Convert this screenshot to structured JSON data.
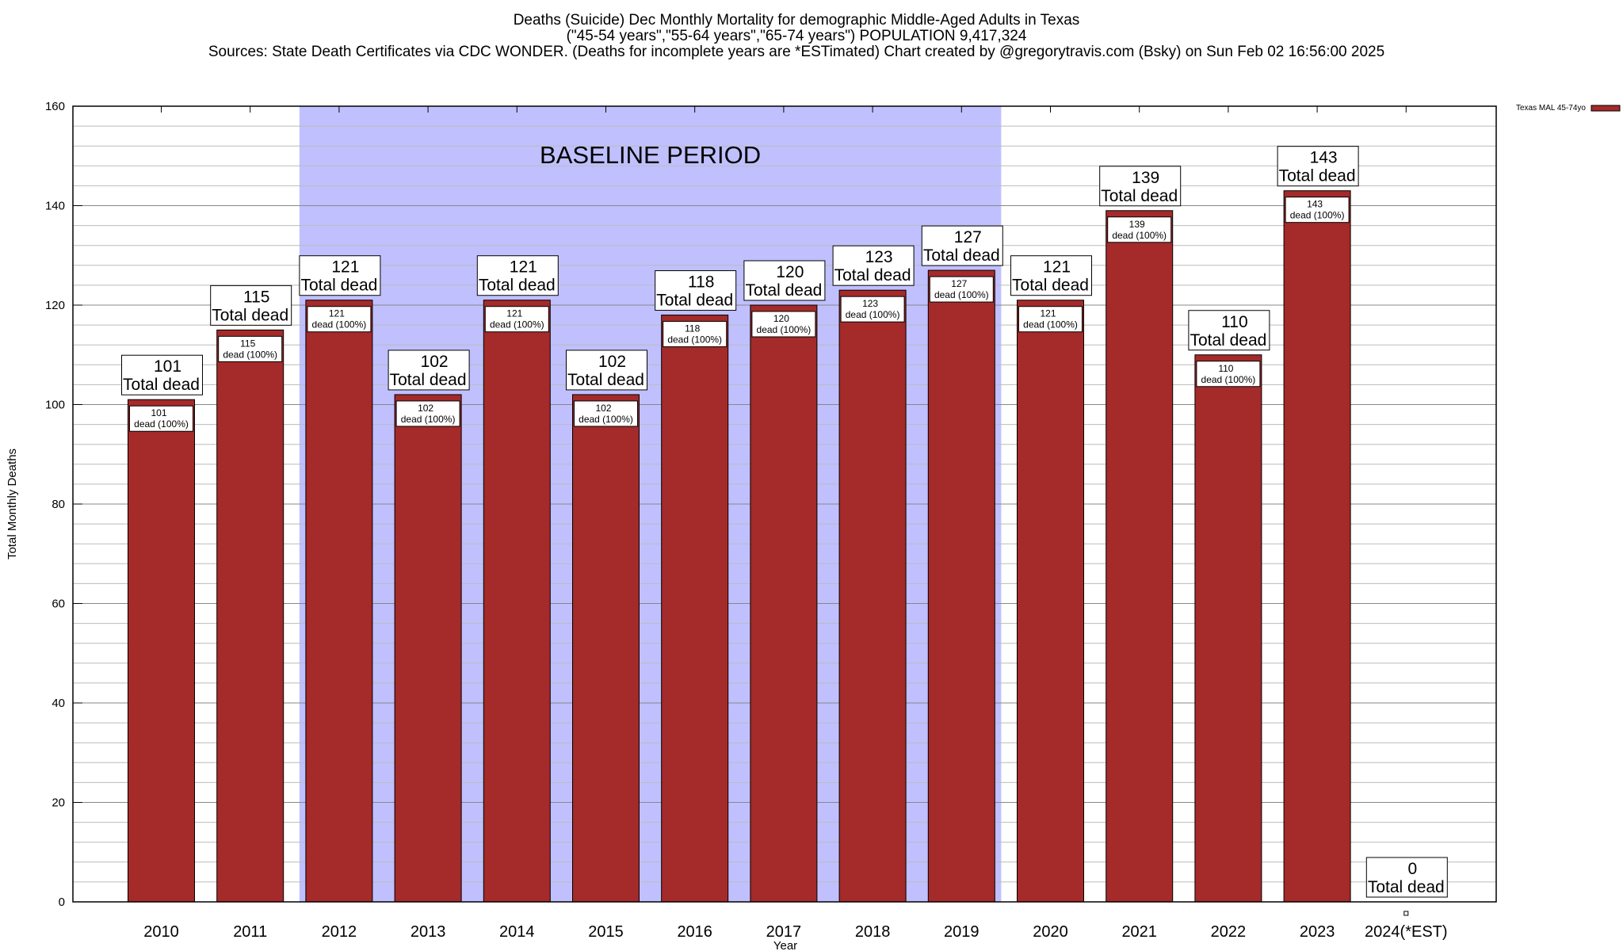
{
  "chart_data": {
    "type": "bar",
    "title_lines": [
      "Deaths (Suicide) Dec Monthly Mortality for demographic Middle-Aged Adults in Texas",
      "(\"45-54 years\",\"55-64 years\",\"65-74 years\") POPULATION 9,417,324",
      "Sources: State Death Certificates via CDC WONDER. (Deaths for incomplete years are *ESTimated)              Chart created by @gregorytravis.com (Bsky) on Sun Feb 02 16:56:00 2025"
    ],
    "xlabel": "Year",
    "ylabel": "Total Monthly Deaths",
    "ylim": [
      0,
      160
    ],
    "yticks": [
      0,
      20,
      40,
      60,
      80,
      100,
      120,
      140,
      160
    ],
    "grid": true,
    "legend": {
      "label": "Texas MAL 45-74yo",
      "placement": "top-right",
      "color": "#a52a2a"
    },
    "bar_color": "#a52a2a",
    "baseline_color": "#c0c0ff",
    "baseline_label": "BASELINE PERIOD",
    "baseline_range": [
      "2012",
      "2019"
    ],
    "categories": [
      "2010",
      "2011",
      "2012",
      "2013",
      "2014",
      "2015",
      "2016",
      "2017",
      "2018",
      "2019",
      "2020",
      "2021",
      "2022",
      "2023",
      "2024(*EST)"
    ],
    "values": [
      101,
      115,
      121,
      102,
      121,
      102,
      118,
      120,
      123,
      127,
      121,
      139,
      110,
      143,
      0
    ],
    "total_label": "Total dead",
    "inner_label": "dead (100%)"
  }
}
